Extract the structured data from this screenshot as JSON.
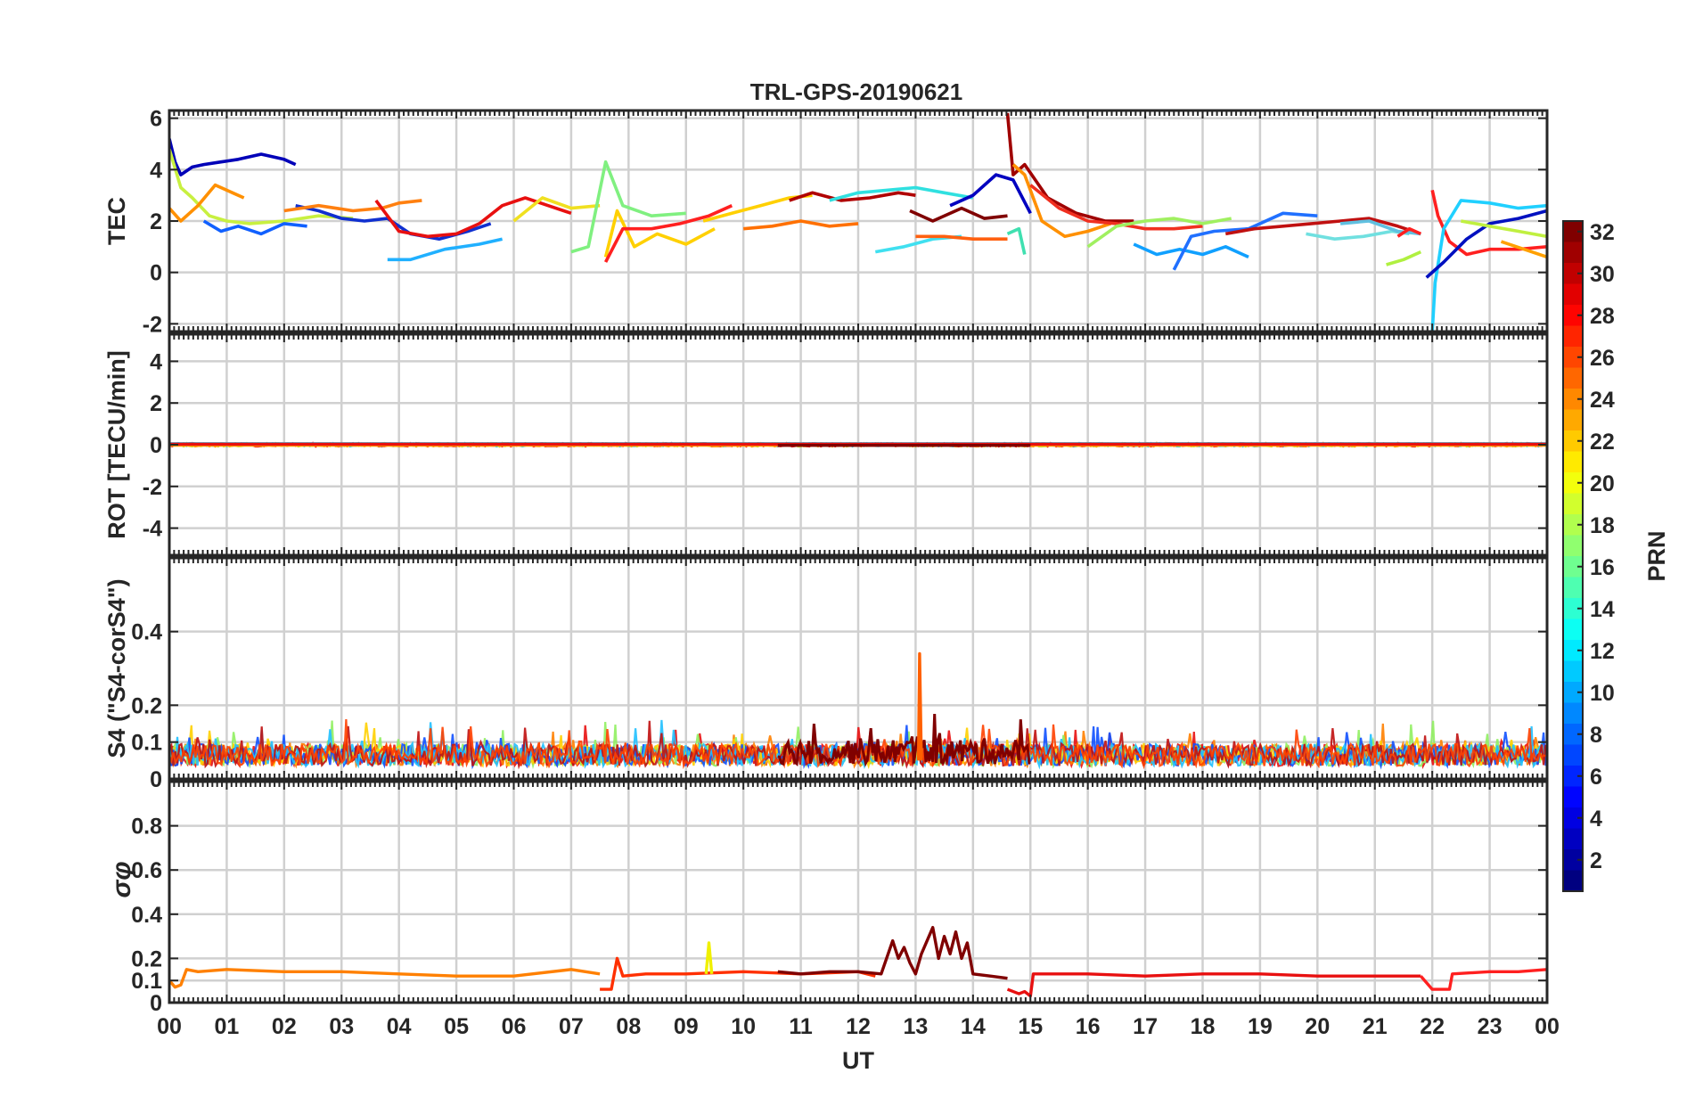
{
  "title": "TRL-GPS-20190621",
  "colors": {
    "axis": "#262626",
    "grid": "#d0d0d0"
  },
  "chart_data": [
    {
      "type": "line",
      "ylabel": "TEC",
      "yticks": [
        "6",
        "4",
        "2",
        "0",
        "-2"
      ],
      "ytick_values": [
        6,
        4,
        2,
        0,
        -2
      ],
      "ylim": [
        -2.3,
        6.3
      ],
      "xlim": [
        0,
        24
      ],
      "grid": true,
      "series": [
        {
          "color": "#0000b8",
          "x": [
            0.0,
            0.1,
            0.2,
            0.4,
            0.6,
            0.9,
            1.2,
            1.6,
            2.0,
            2.2
          ],
          "y": [
            5.2,
            4.3,
            3.8,
            4.1,
            4.2,
            4.3,
            4.4,
            4.6,
            4.4,
            4.2
          ]
        },
        {
          "color": "#c8f040",
          "x": [
            0.0,
            0.2,
            0.4,
            0.7,
            1.0,
            1.4,
            2.0,
            2.6,
            3.2
          ],
          "y": [
            4.8,
            3.3,
            2.9,
            2.2,
            2.0,
            1.9,
            2.0,
            2.2,
            2.1
          ]
        },
        {
          "color": "#ff9000",
          "x": [
            0.0,
            0.2,
            0.5,
            0.8,
            1.1,
            1.3
          ],
          "y": [
            2.5,
            2.0,
            2.6,
            3.4,
            3.1,
            2.9
          ]
        },
        {
          "color": "#1060ff",
          "x": [
            0.6,
            0.9,
            1.2,
            1.6,
            2.0,
            2.4
          ],
          "y": [
            2.0,
            1.6,
            1.8,
            1.5,
            1.9,
            1.8
          ]
        },
        {
          "color": "#1030d0",
          "x": [
            2.2,
            2.6,
            3.0,
            3.4,
            3.8,
            4.2,
            4.7,
            5.2,
            5.6
          ],
          "y": [
            2.6,
            2.4,
            2.1,
            2.0,
            2.1,
            1.5,
            1.3,
            1.6,
            1.9
          ]
        },
        {
          "color": "#ff8010",
          "x": [
            2.0,
            2.6,
            3.2,
            3.7,
            4.0,
            4.4
          ],
          "y": [
            2.4,
            2.6,
            2.4,
            2.5,
            2.7,
            2.8
          ]
        },
        {
          "color": "#e81010",
          "x": [
            3.6,
            4.0,
            4.5,
            5.0,
            5.4,
            5.8,
            6.2,
            6.6,
            7.0
          ],
          "y": [
            2.8,
            1.6,
            1.4,
            1.5,
            1.9,
            2.6,
            2.9,
            2.6,
            2.3
          ]
        },
        {
          "color": "#20b0ff",
          "x": [
            3.8,
            4.2,
            4.8,
            5.4,
            5.8
          ],
          "y": [
            0.5,
            0.5,
            0.9,
            1.1,
            1.3
          ]
        },
        {
          "color": "#f0e020",
          "x": [
            6.0,
            6.5,
            7.0,
            7.5
          ],
          "y": [
            2.0,
            2.9,
            2.5,
            2.6
          ]
        },
        {
          "color": "#80f080",
          "x": [
            7.0,
            7.3,
            7.6,
            7.9,
            8.4,
            9.0
          ],
          "y": [
            0.8,
            1.0,
            4.3,
            2.6,
            2.2,
            2.3
          ]
        },
        {
          "color": "#ffd000",
          "x": [
            7.6,
            7.8,
            8.1,
            8.5,
            9.0,
            9.5
          ],
          "y": [
            0.6,
            2.4,
            1.0,
            1.5,
            1.1,
            1.7
          ]
        },
        {
          "color": "#ff2020",
          "x": [
            7.6,
            7.9,
            8.4,
            8.9,
            9.4,
            9.8
          ],
          "y": [
            0.4,
            1.7,
            1.7,
            1.9,
            2.2,
            2.6
          ]
        },
        {
          "color": "#ffd000",
          "x": [
            9.3,
            9.8,
            10.3,
            10.8,
            11.2
          ],
          "y": [
            2.0,
            2.3,
            2.6,
            2.9,
            3.0
          ]
        },
        {
          "color": "#ff7000",
          "x": [
            10.0,
            10.5,
            11.0,
            11.5,
            12.0
          ],
          "y": [
            1.7,
            1.8,
            2.0,
            1.8,
            1.9
          ]
        },
        {
          "color": "#b00000",
          "x": [
            10.8,
            11.2,
            11.7,
            12.2,
            12.7,
            13.0
          ],
          "y": [
            2.8,
            3.1,
            2.8,
            2.9,
            3.1,
            3.0
          ]
        },
        {
          "color": "#30e0e0",
          "x": [
            11.5,
            12.0,
            12.5,
            13.0,
            13.5,
            14.0
          ],
          "y": [
            2.8,
            3.1,
            3.2,
            3.3,
            3.1,
            2.9
          ]
        },
        {
          "color": "#40e0f0",
          "x": [
            12.3,
            12.8,
            13.3,
            13.8
          ],
          "y": [
            0.8,
            1.0,
            1.3,
            1.4
          ]
        },
        {
          "color": "#ff6010",
          "x": [
            13.0,
            13.5,
            14.0,
            14.6
          ],
          "y": [
            1.4,
            1.4,
            1.3,
            1.3
          ]
        },
        {
          "color": "#800000",
          "x": [
            12.9,
            13.3,
            13.8,
            14.2,
            14.6
          ],
          "y": [
            2.4,
            2.0,
            2.5,
            2.1,
            2.2
          ]
        },
        {
          "color": "#0000c0",
          "x": [
            13.6,
            14.0,
            14.4,
            14.7,
            15.0
          ],
          "y": [
            2.6,
            3.0,
            3.8,
            3.6,
            2.3
          ]
        },
        {
          "color": "#40e0b0",
          "x": [
            14.6,
            14.8,
            14.9
          ],
          "y": [
            1.5,
            1.7,
            0.7
          ]
        },
        {
          "color": "#a00000",
          "x": [
            14.6,
            14.7,
            14.9,
            15.3,
            15.8,
            16.3,
            16.8
          ],
          "y": [
            6.2,
            3.8,
            4.2,
            2.9,
            2.3,
            2.0,
            2.0
          ]
        },
        {
          "color": "#ff9000",
          "x": [
            14.7,
            14.9,
            15.2,
            15.6,
            16.0,
            16.4
          ],
          "y": [
            4.2,
            3.8,
            2.0,
            1.4,
            1.6,
            1.9
          ]
        },
        {
          "color": "#f03020",
          "x": [
            15.0,
            15.5,
            16.0,
            16.5,
            17.0,
            17.5,
            18.0
          ],
          "y": [
            3.4,
            2.5,
            2.0,
            1.9,
            1.7,
            1.7,
            1.8
          ]
        },
        {
          "color": "#a0f060",
          "x": [
            16.0,
            16.5,
            17.0,
            17.5,
            18.0,
            18.5
          ],
          "y": [
            1.0,
            1.8,
            2.0,
            2.1,
            1.9,
            2.1
          ]
        },
        {
          "color": "#10a0ff",
          "x": [
            16.8,
            17.2,
            17.6,
            18.0,
            18.4,
            18.8
          ],
          "y": [
            1.1,
            0.7,
            0.9,
            0.7,
            1.0,
            0.6
          ]
        },
        {
          "color": "#2070ff",
          "x": [
            17.5,
            17.8,
            18.2,
            18.8,
            19.4,
            20.0
          ],
          "y": [
            0.1,
            1.4,
            1.6,
            1.7,
            2.3,
            2.2
          ]
        },
        {
          "color": "#c01010",
          "x": [
            18.4,
            18.9,
            19.4,
            19.9,
            20.4,
            20.9,
            21.4,
            21.8
          ],
          "y": [
            1.5,
            1.7,
            1.8,
            1.9,
            2.0,
            2.1,
            1.8,
            1.5
          ]
        },
        {
          "color": "#70e0e0",
          "x": [
            19.8,
            20.3,
            20.8,
            21.3,
            21.6
          ],
          "y": [
            1.5,
            1.3,
            1.4,
            1.6,
            1.5
          ]
        },
        {
          "color": "#60c0e0",
          "x": [
            20.4,
            20.9,
            21.4,
            21.8
          ],
          "y": [
            1.9,
            2.0,
            1.6,
            1.5
          ]
        },
        {
          "color": "#ff2020",
          "x": [
            21.4,
            21.6,
            21.8
          ],
          "y": [
            1.4,
            1.7,
            1.5
          ]
        },
        {
          "color": "#b0f040",
          "x": [
            21.2,
            21.5,
            21.8
          ],
          "y": [
            0.3,
            0.5,
            0.8
          ]
        },
        {
          "color": "#ff2020",
          "x": [
            22.0,
            22.1,
            22.3,
            22.6,
            23.0,
            23.5,
            24.0
          ],
          "y": [
            3.2,
            2.2,
            1.2,
            0.7,
            0.9,
            0.9,
            1.0
          ]
        },
        {
          "color": "#20d0ff",
          "x": [
            22.0,
            22.05,
            22.2,
            22.5,
            23.0,
            23.5,
            24.0
          ],
          "y": [
            -2.3,
            -0.4,
            1.7,
            2.8,
            2.7,
            2.5,
            2.6
          ]
        },
        {
          "color": "#0010c0",
          "x": [
            21.9,
            22.2,
            22.6,
            23.0,
            23.5,
            24.0
          ],
          "y": [
            -0.2,
            0.4,
            1.3,
            1.9,
            2.1,
            2.4
          ]
        },
        {
          "color": "#c0f040",
          "x": [
            22.5,
            23.0,
            23.5,
            24.0
          ],
          "y": [
            2.0,
            1.8,
            1.6,
            1.4
          ]
        },
        {
          "color": "#ffa000",
          "x": [
            23.2,
            23.6,
            24.0
          ],
          "y": [
            1.2,
            0.9,
            0.6
          ]
        }
      ]
    },
    {
      "type": "line",
      "ylabel": "ROT [TECU/min]",
      "yticks": [
        "4",
        "2",
        "0",
        "-2",
        "-4"
      ],
      "ytick_values": [
        4,
        2,
        0,
        -2,
        -4
      ],
      "ylim": [
        -5.3,
        5.3
      ],
      "xlim": [
        0,
        24
      ],
      "grid": true,
      "series": [
        {
          "color": "#20d0ff",
          "x": [
            0,
            24
          ],
          "y": [
            0.05,
            0.05
          ]
        },
        {
          "color": "#c0f040",
          "x": [
            0,
            24
          ],
          "y": [
            0.0,
            0.0
          ]
        },
        {
          "color": "#ff9000",
          "x": [
            0,
            24
          ],
          "y": [
            -0.02,
            -0.02
          ]
        },
        {
          "color": "#e81010",
          "x": [
            0,
            24
          ],
          "y": [
            0.03,
            0.03
          ]
        },
        {
          "color": "#800000",
          "x": [
            10.6,
            15.0
          ],
          "y": [
            -0.03,
            -0.03
          ]
        }
      ]
    },
    {
      "type": "line",
      "ylabel": "S4 (\"S4-corS4\")",
      "yticks": [
        "0.4",
        "0.2",
        "0.1",
        "0"
      ],
      "ytick_values": [
        0.4,
        0.2,
        0.1,
        0
      ],
      "ylim": [
        0,
        0.6
      ],
      "xlim": [
        0,
        24
      ],
      "grid": true,
      "series": [
        {
          "color": "#ff6000",
          "x": [
            13.05,
            13.07,
            13.1
          ],
          "y": [
            0.05,
            0.34,
            0.05
          ]
        }
      ]
    },
    {
      "type": "line",
      "ylabel": "σφ",
      "yticks": [
        "0.8",
        "0.6",
        "0.4",
        "0.2",
        "0.1",
        "0"
      ],
      "ytick_values": [
        0.8,
        0.6,
        0.4,
        0.2,
        0.1,
        0
      ],
      "ylim": [
        0,
        1.0
      ],
      "xlim": [
        0,
        24
      ],
      "xlabel": "UT",
      "xticks": [
        "00",
        "01",
        "02",
        "03",
        "04",
        "05",
        "06",
        "07",
        "08",
        "09",
        "10",
        "11",
        "12",
        "13",
        "14",
        "15",
        "16",
        "17",
        "18",
        "19",
        "20",
        "21",
        "22",
        "23",
        "00"
      ],
      "grid": true,
      "series": [
        {
          "color": "#ff8000",
          "x": [
            0,
            0.1,
            0.2,
            0.3,
            0.5,
            1,
            2,
            3,
            4,
            5,
            6,
            7,
            7.5
          ],
          "y": [
            0.1,
            0.07,
            0.08,
            0.15,
            0.14,
            0.15,
            0.14,
            0.14,
            0.13,
            0.12,
            0.12,
            0.15,
            0.13
          ]
        },
        {
          "color": "#ff3000",
          "x": [
            7.5,
            7.7,
            7.8,
            7.9,
            8.3,
            9,
            10,
            11,
            12,
            12.3
          ],
          "y": [
            0.06,
            0.06,
            0.2,
            0.12,
            0.13,
            0.13,
            0.14,
            0.13,
            0.14,
            0.12
          ]
        },
        {
          "color": "#f0f000",
          "x": [
            9.35,
            9.4,
            9.45
          ],
          "y": [
            0.13,
            0.27,
            0.13
          ]
        },
        {
          "color": "#800000",
          "x": [
            10.6,
            11,
            11.5,
            12,
            12.4,
            12.6,
            12.7,
            12.8,
            12.9,
            13.0,
            13.1,
            13.2,
            13.3,
            13.4,
            13.5,
            13.6,
            13.7,
            13.8,
            13.9,
            14.0,
            14.3,
            14.6
          ],
          "y": [
            0.14,
            0.13,
            0.14,
            0.14,
            0.13,
            0.28,
            0.2,
            0.25,
            0.18,
            0.13,
            0.22,
            0.28,
            0.34,
            0.2,
            0.3,
            0.22,
            0.32,
            0.2,
            0.27,
            0.13,
            0.12,
            0.11
          ]
        },
        {
          "color": "#e81010",
          "x": [
            14.6,
            14.8,
            14.9,
            15.0,
            15.05,
            16,
            17,
            18,
            19,
            20,
            21,
            21.8
          ],
          "y": [
            0.06,
            0.04,
            0.05,
            0.03,
            0.13,
            0.13,
            0.12,
            0.13,
            0.13,
            0.12,
            0.12,
            0.12
          ]
        },
        {
          "color": "#ff2020",
          "x": [
            21.8,
            22.0,
            22.2,
            22.3,
            22.35,
            23,
            23.5,
            24
          ],
          "y": [
            0.12,
            0.06,
            0.06,
            0.06,
            0.13,
            0.14,
            0.14,
            0.15
          ]
        }
      ]
    }
  ],
  "colorbar": {
    "label": "PRN",
    "ticks": [
      "32",
      "30",
      "28",
      "26",
      "24",
      "22",
      "20",
      "18",
      "16",
      "14",
      "12",
      "10",
      "8",
      "6",
      "4",
      "2"
    ],
    "tick_values": [
      32,
      30,
      28,
      26,
      24,
      22,
      20,
      18,
      16,
      14,
      12,
      10,
      8,
      6,
      4,
      2
    ],
    "range": [
      1,
      32
    ],
    "colormap": "jet"
  }
}
